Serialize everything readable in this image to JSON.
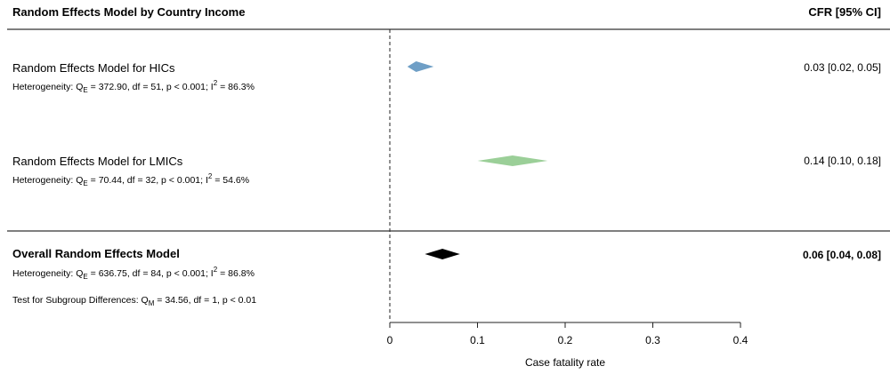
{
  "chart_data": {
    "type": "forest",
    "header": {
      "title": "Random Effects Model by Country Income",
      "estimate_col": "CFR [95% CI]"
    },
    "rows": [
      {
        "label": "Random Effects Model for HICs",
        "bold": false,
        "estimate": 0.03,
        "ci_low": 0.02,
        "ci_high": 0.05,
        "estimate_text": "0.03 [0.02, 0.05]",
        "color": "#6f9fc6",
        "het": {
          "prefix": "Heterogeneity: Q",
          "sub": "E",
          "stats": " = 372.90, df = 51, p < 0.001; I",
          "sup": "2",
          "tail": " = 86.3%"
        }
      },
      {
        "label": "Random Effects Model for LMICs",
        "bold": false,
        "estimate": 0.14,
        "ci_low": 0.1,
        "ci_high": 0.18,
        "estimate_text": "0.14 [0.10, 0.18]",
        "color": "#9bcf98",
        "het": {
          "prefix": "Heterogeneity: Q",
          "sub": "E",
          "stats": " = 70.44, df = 32, p < 0.001; I",
          "sup": "2",
          "tail": " = 54.6%"
        }
      },
      {
        "label": "Overall Random Effects Model",
        "bold": true,
        "estimate": 0.06,
        "ci_low": 0.04,
        "ci_high": 0.08,
        "estimate_text": "0.06 [0.04, 0.08]",
        "color": "#000000",
        "het": {
          "prefix": "Heterogeneity: Q",
          "sub": "E",
          "stats": " = 636.75, df = 84, p < 0.001; I",
          "sup": "2",
          "tail": " = 86.8%"
        }
      }
    ],
    "subgroup_test": {
      "prefix": "Test for Subgroup Differences: Q",
      "sub": "M",
      "tail": " = 34.56, df = 1, p < 0.01"
    },
    "x_axis": {
      "label": "Case fatality rate",
      "ticks": [
        0,
        0.1,
        0.2,
        0.3,
        0.4
      ],
      "tick_labels": [
        "0",
        "0.1",
        "0.2",
        "0.3",
        "0.4"
      ],
      "range": [
        0,
        0.4
      ]
    },
    "reference_line": 0,
    "grid": false
  }
}
